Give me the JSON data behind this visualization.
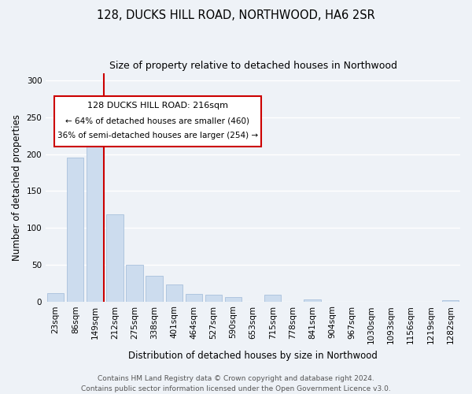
{
  "title": "128, DUCKS HILL ROAD, NORTHWOOD, HA6 2SR",
  "subtitle": "Size of property relative to detached houses in Northwood",
  "xlabel": "Distribution of detached houses by size in Northwood",
  "ylabel": "Number of detached properties",
  "bar_labels": [
    "23sqm",
    "86sqm",
    "149sqm",
    "212sqm",
    "275sqm",
    "338sqm",
    "401sqm",
    "464sqm",
    "527sqm",
    "590sqm",
    "653sqm",
    "715sqm",
    "778sqm",
    "841sqm",
    "904sqm",
    "967sqm",
    "1030sqm",
    "1093sqm",
    "1156sqm",
    "1219sqm",
    "1282sqm"
  ],
  "bar_values": [
    11,
    196,
    251,
    118,
    50,
    35,
    23,
    10,
    9,
    6,
    0,
    9,
    0,
    3,
    0,
    0,
    0,
    0,
    0,
    0,
    2
  ],
  "bar_color": "#ccdcee",
  "bar_edge_color": "#a8c0dc",
  "vline_index": 2,
  "vline_color": "#cc0000",
  "annotation_title": "128 DUCKS HILL ROAD: 216sqm",
  "annotation_line1": "← 64% of detached houses are smaller (460)",
  "annotation_line2": "36% of semi-detached houses are larger (254) →",
  "annotation_box_color": "#ffffff",
  "annotation_box_edge": "#cc0000",
  "ylim": [
    0,
    310
  ],
  "yticks": [
    0,
    50,
    100,
    150,
    200,
    250,
    300
  ],
  "footer1": "Contains HM Land Registry data © Crown copyright and database right 2024.",
  "footer2": "Contains public sector information licensed under the Open Government Licence v3.0.",
  "bg_color": "#eef2f7",
  "grid_color": "#ffffff",
  "title_fontsize": 10.5,
  "subtitle_fontsize": 9,
  "ylabel_fontsize": 8.5,
  "xlabel_fontsize": 8.5,
  "tick_fontsize": 7.5,
  "footer_fontsize": 6.5
}
